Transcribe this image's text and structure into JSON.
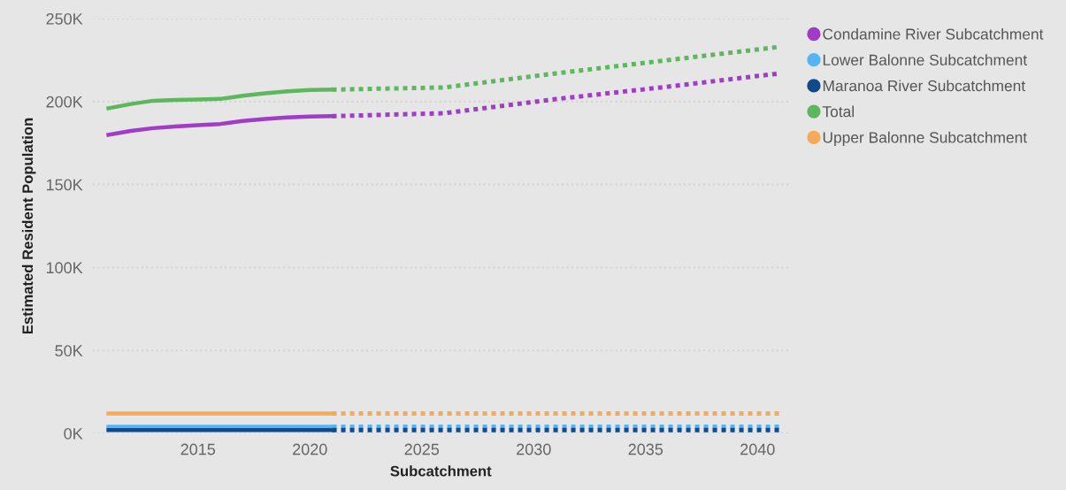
{
  "chart_data": {
    "type": "line",
    "xlabel": "Subcatchment",
    "ylabel": "Estimated Resident Population",
    "xlim": [
      2010.3,
      2041.4
    ],
    "xticks": [
      2015,
      2020,
      2025,
      2030,
      2035,
      2040
    ],
    "ylim": [
      0,
      250
    ],
    "yticks": [
      {
        "value": 0,
        "label": "0K"
      },
      {
        "value": 50,
        "label": "50K"
      },
      {
        "value": 100,
        "label": "100K"
      },
      {
        "value": 150,
        "label": "150K"
      },
      {
        "value": 200,
        "label": "200K"
      },
      {
        "value": 250,
        "label": "250K"
      }
    ],
    "grid": "y",
    "legend": "right",
    "marker": "none",
    "series": [
      {
        "name": "Condamine River Subcatchment",
        "color": "#a03cc8",
        "line_style": "solid",
        "x": [
          2011,
          2012,
          2013,
          2014,
          2015,
          2016,
          2017,
          2018,
          2019,
          2020,
          2021
        ],
        "values": [
          180,
          182.3,
          184,
          185,
          185.8,
          186.5,
          188.3,
          189.5,
          190.5,
          191,
          191.2
        ]
      },
      {
        "name": "Lower Balonne Subcatchment",
        "color": "#56b4f5",
        "line_style": "solid",
        "x": [
          2011,
          2012,
          2013,
          2014,
          2015,
          2016,
          2017,
          2018,
          2019,
          2020,
          2021
        ],
        "values": [
          4,
          4,
          4,
          4,
          4,
          4,
          4,
          4,
          4,
          4,
          4
        ]
      },
      {
        "name": "Maranoa River Subcatchment",
        "color": "#0f4a8a",
        "line_style": "solid",
        "x": [
          2011,
          2012,
          2013,
          2014,
          2015,
          2016,
          2017,
          2018,
          2019,
          2020,
          2021
        ],
        "values": [
          2,
          2,
          2,
          2,
          2,
          2,
          2,
          2,
          2,
          2,
          2
        ]
      },
      {
        "name": "Total",
        "color": "#5cb85c",
        "line_style": "solid",
        "x": [
          2011,
          2012,
          2013,
          2014,
          2015,
          2016,
          2017,
          2018,
          2019,
          2020,
          2021
        ],
        "values": [
          196,
          198.5,
          200.5,
          201,
          201.3,
          201.6,
          203.5,
          205,
          206.2,
          207,
          207.2
        ]
      },
      {
        "name": "Upper Balonne Subcatchment",
        "color": "#f5aa5a",
        "line_style": "solid",
        "x": [
          2011,
          2012,
          2013,
          2014,
          2015,
          2016,
          2017,
          2018,
          2019,
          2020,
          2021
        ],
        "values": [
          12,
          12,
          12,
          12,
          12,
          12,
          12,
          12,
          12,
          12,
          12
        ]
      },
      {
        "color": "#a03cc8",
        "line_style": "dotted",
        "x": [
          2021,
          2026,
          2031,
          2036,
          2041
        ],
        "values": [
          191.2,
          193,
          201.5,
          209,
          217
        ]
      },
      {
        "color": "#56b4f5",
        "line_style": "dotted",
        "x": [
          2021,
          2026,
          2031,
          2036,
          2041
        ],
        "values": [
          4,
          4,
          4,
          4,
          4
        ]
      },
      {
        "color": "#0f4a8a",
        "line_style": "dotted",
        "x": [
          2021,
          2026,
          2031,
          2036,
          2041
        ],
        "values": [
          2,
          2,
          2,
          2,
          2
        ]
      },
      {
        "color": "#5cb85c",
        "line_style": "dotted",
        "x": [
          2021,
          2026,
          2031,
          2036,
          2041
        ],
        "values": [
          207.2,
          208.5,
          217,
          225,
          233
        ]
      },
      {
        "color": "#f5aa5a",
        "line_style": "dotted",
        "x": [
          2021,
          2026,
          2031,
          2036,
          2041
        ],
        "values": [
          12,
          12,
          12,
          12,
          12
        ]
      }
    ]
  }
}
